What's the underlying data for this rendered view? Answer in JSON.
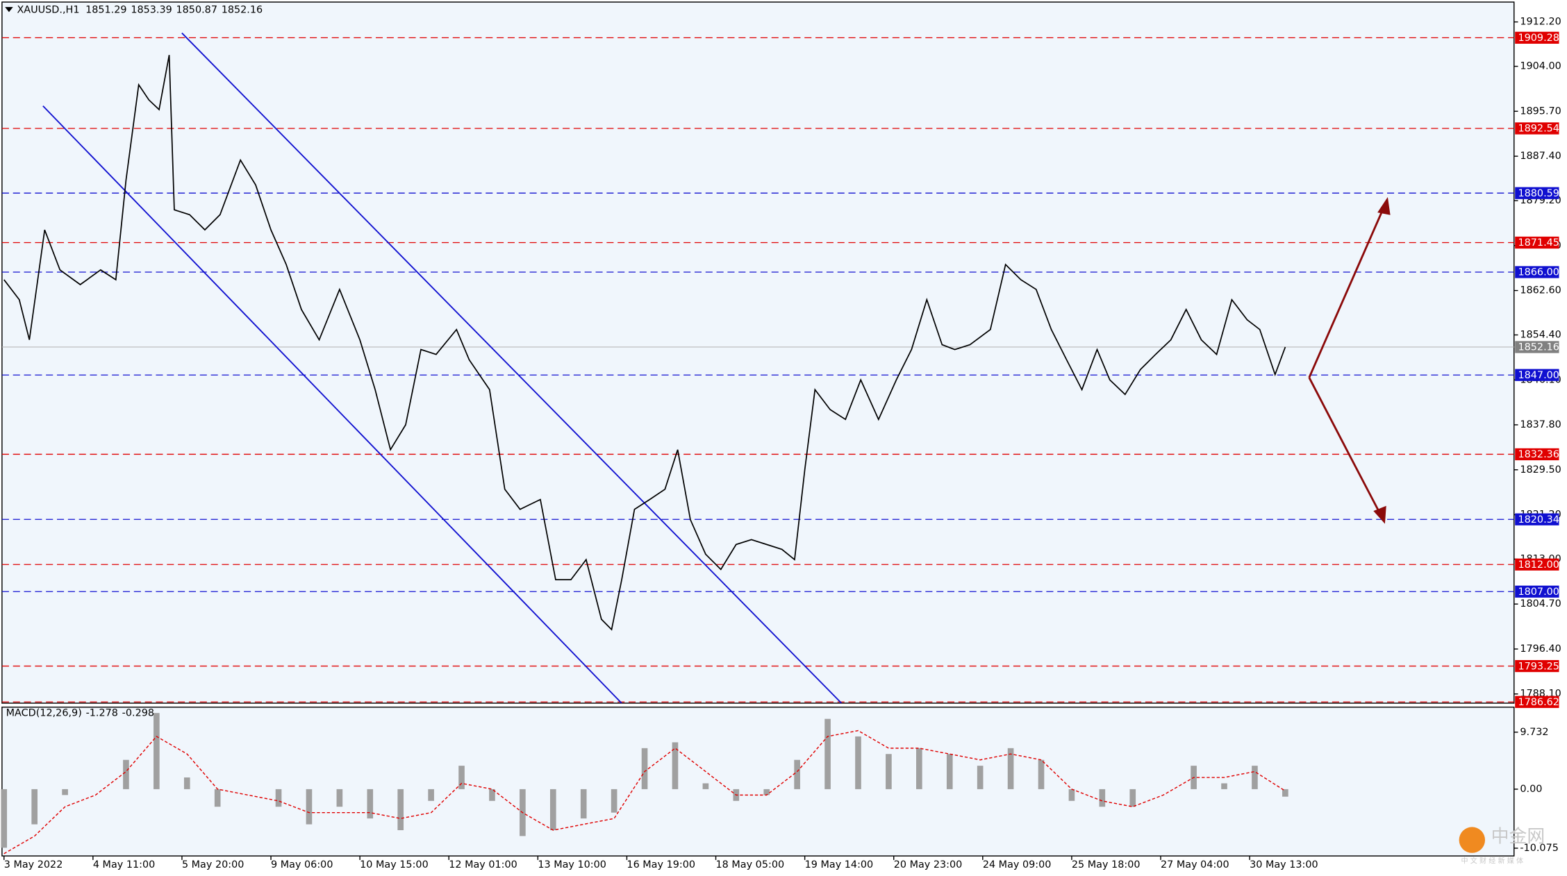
{
  "chart_data": [
    {
      "type": "line",
      "title": "XAUUSD.,H1",
      "quote": [
        1851.29,
        1853.39,
        1850.87,
        1852.16
      ],
      "color": "#000000",
      "x": [
        0,
        6,
        10,
        16,
        22,
        30,
        38,
        44,
        48,
        53,
        57,
        61,
        65,
        67,
        73,
        79,
        85,
        93,
        99,
        105,
        111,
        117,
        124,
        132,
        140,
        146,
        152,
        158,
        164,
        170,
        178,
        183,
        191,
        197,
        203,
        211,
        217,
        223,
        229,
        235,
        239,
        243,
        248,
        254,
        260,
        265,
        270,
        276,
        282,
        288,
        294,
        300,
        306,
        311,
        315,
        319,
        325,
        331,
        337,
        344,
        351,
        357,
        363,
        369,
        374,
        380,
        388,
        394,
        400,
        406,
        412,
        418,
        424,
        430,
        435,
        441,
        447,
        453,
        459,
        465,
        471,
        477,
        483,
        489,
        494,
        500,
        504
      ],
      "values": [
        1864.6,
        1860.9,
        1853.5,
        1873.8,
        1866.4,
        1863.7,
        1866.4,
        1864.6,
        1883.0,
        1900.6,
        1897.8,
        1896.0,
        1906.1,
        1877.5,
        1876.6,
        1873.8,
        1876.6,
        1886.7,
        1882.1,
        1873.8,
        1867.4,
        1859.1,
        1853.5,
        1862.8,
        1853.5,
        1844.3,
        1833.2,
        1837.8,
        1851.7,
        1850.8,
        1855.4,
        1849.8,
        1844.3,
        1825.9,
        1822.2,
        1824.0,
        1809.2,
        1809.2,
        1812.9,
        1801.9,
        1800.0,
        1809.2,
        1822.2,
        1824.0,
        1825.9,
        1833.2,
        1820.3,
        1813.9,
        1811.1,
        1815.7,
        1816.6,
        1815.7,
        1814.8,
        1812.9,
        1829.5,
        1844.3,
        1840.6,
        1838.8,
        1846.1,
        1838.8,
        1846.1,
        1851.7,
        1860.9,
        1852.6,
        1851.7,
        1852.6,
        1855.4,
        1867.4,
        1864.6,
        1862.8,
        1855.4,
        1849.8,
        1844.3,
        1851.7,
        1846.1,
        1843.4,
        1848.0,
        1850.8,
        1853.5,
        1859.1,
        1853.5,
        1850.8,
        1860.9,
        1857.2,
        1855.4,
        1847.1,
        1852.16
      ],
      "xlim": [
        0,
        594
      ],
      "xticks": [
        {
          "value": 0,
          "label": "3 May 2022"
        },
        {
          "value": 35,
          "label": "4 May 11:00"
        },
        {
          "value": 70,
          "label": "5 May 20:00"
        },
        {
          "value": 105,
          "label": "9 May 06:00"
        },
        {
          "value": 140,
          "label": "10 May 15:00"
        },
        {
          "value": 175,
          "label": "12 May 01:00"
        },
        {
          "value": 210,
          "label": "13 May 10:00"
        },
        {
          "value": 245,
          "label": "16 May 19:00"
        },
        {
          "value": 280,
          "label": "18 May 05:00"
        },
        {
          "value": 315,
          "label": "19 May 14:00"
        },
        {
          "value": 350,
          "label": "20 May 23:00"
        },
        {
          "value": 385,
          "label": "24 May 09:00"
        },
        {
          "value": 420,
          "label": "25 May 18:00"
        },
        {
          "value": 455,
          "label": "27 May 04:00"
        },
        {
          "value": 490,
          "label": "30 May 13:00"
        }
      ],
      "ylim": [
        1786.4,
        1915.5
      ],
      "yticks": [
        {
          "value": 1912.2,
          "label": "1912.20"
        },
        {
          "value": 1904,
          "label": "1904.00"
        },
        {
          "value": 1895.7,
          "label": "1895.70"
        },
        {
          "value": 1887.4,
          "label": "1887.40"
        },
        {
          "value": 1879.2,
          "label": "1879.20"
        },
        {
          "value": 1870.9,
          "label": "1870.90"
        },
        {
          "value": 1862.6,
          "label": "1862.60"
        },
        {
          "value": 1854.4,
          "label": "1854.40"
        },
        {
          "value": 1846.1,
          "label": "1846.10"
        },
        {
          "value": 1837.8,
          "label": "1837.80"
        },
        {
          "value": 1829.5,
          "label": "1829.50"
        },
        {
          "value": 1821.2,
          "label": "1821.20"
        },
        {
          "value": 1813,
          "label": "1813.00"
        },
        {
          "value": 1804.7,
          "label": "1804.70"
        },
        {
          "value": 1796.4,
          "label": "1796.40"
        },
        {
          "value": 1788.1,
          "label": "1788.10"
        }
      ],
      "levels": [
        {
          "value": 1909.28,
          "label": "1909.28",
          "color": "#e00000"
        },
        {
          "value": 1892.54,
          "label": "1892.54",
          "color": "#e00000"
        },
        {
          "value": 1880.59,
          "label": "1880.59",
          "color": "#1010d0"
        },
        {
          "value": 1871.45,
          "label": "1871.45",
          "color": "#e00000"
        },
        {
          "value": 1866,
          "label": "1866.00",
          "color": "#1010d0"
        },
        {
          "value": 1847,
          "label": "1847.00",
          "color": "#1010d0"
        },
        {
          "value": 1832.36,
          "label": "1832.36",
          "color": "#e00000"
        },
        {
          "value": 1820.34,
          "label": "1820.34",
          "color": "#1010d0"
        },
        {
          "value": 1812,
          "label": "1812.00",
          "color": "#e00000"
        },
        {
          "value": 1807,
          "label": "1807.00",
          "color": "#1010d0"
        },
        {
          "value": 1793.25,
          "label": "1793.25",
          "color": "#e00000"
        },
        {
          "value": 1786.62,
          "label": "1786.62",
          "color": "#e00000"
        }
      ],
      "current_price": 1852.16
    },
    {
      "type": "macd",
      "title": "MACD(12,26,9)",
      "readout": [
        -1.278,
        -0.298
      ],
      "x": [
        0,
        12,
        24,
        36,
        48,
        60,
        72,
        84,
        96,
        108,
        120,
        132,
        144,
        156,
        168,
        180,
        192,
        204,
        216,
        228,
        240,
        252,
        264,
        276,
        288,
        300,
        312,
        324,
        336,
        348,
        360,
        372,
        384,
        396,
        408,
        420,
        432,
        444,
        456,
        468,
        480,
        492,
        504
      ],
      "series": [
        {
          "color": "#a0a0a0",
          "values": [
            -10,
            -6,
            -1,
            0,
            5,
            13,
            2,
            -3,
            0,
            -3,
            -6,
            -3,
            -5,
            -7,
            -2,
            4,
            -2,
            -8,
            -7,
            -5,
            -4,
            7,
            8,
            1,
            -2,
            -1,
            5,
            12,
            9,
            6,
            7,
            6,
            4,
            7,
            5,
            -2,
            -3,
            -3,
            0,
            4,
            1,
            4,
            -1.278
          ]
        },
        {
          "color": "#e00000",
          "values": [
            -11,
            -8,
            -3,
            -1,
            3,
            9,
            6,
            0,
            -1,
            -2,
            -4,
            -4,
            -4,
            -5,
            -4,
            1,
            0,
            -4,
            -7,
            -6,
            -5,
            3,
            7,
            3,
            -1,
            -1,
            3,
            9,
            10,
            7,
            7,
            6,
            5,
            6,
            5,
            0,
            -2,
            -3,
            -1,
            2,
            2,
            3,
            -0.298
          ]
        }
      ],
      "xlim": [
        0,
        594
      ],
      "ylim": [
        -11.4,
        14
      ],
      "yticks": [
        {
          "value": 9.732,
          "label": "9.732"
        },
        {
          "value": 0,
          "label": "0.00"
        },
        {
          "value": -10.075,
          "label": "-10.075"
        }
      ]
    }
  ],
  "watermark": "中金网",
  "watermark_sub": "中 文 财 经 新 媒 体"
}
